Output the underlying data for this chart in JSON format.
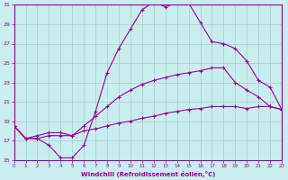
{
  "xlabel": "Windchill (Refroidissement éolien,°C)",
  "background_color": "#c8eef0",
  "grid_color": "#aacccc",
  "line_color": "#990099",
  "xmin": 0,
  "xmax": 23,
  "ymin": 15,
  "ymax": 31,
  "yticks": [
    15,
    17,
    19,
    21,
    23,
    25,
    27,
    29,
    31
  ],
  "xticks": [
    0,
    1,
    2,
    3,
    4,
    5,
    6,
    7,
    8,
    9,
    10,
    11,
    12,
    13,
    14,
    15,
    16,
    17,
    18,
    19,
    20,
    21,
    22,
    23
  ],
  "curve1_x": [
    0,
    1,
    2,
    3,
    4,
    5,
    6,
    7,
    8,
    9,
    10,
    11,
    12,
    13,
    14,
    15,
    16,
    17,
    18,
    19,
    20,
    21,
    22,
    23
  ],
  "curve1_y": [
    18.5,
    17.2,
    17.2,
    16.5,
    15.2,
    15.2,
    16.5,
    20.0,
    24.0,
    26.5,
    28.5,
    30.5,
    31.3,
    30.8,
    31.2,
    31.2,
    29.2,
    27.2,
    27.0,
    26.5,
    25.2,
    23.2,
    22.5,
    20.2
  ],
  "curve2_x": [
    0,
    1,
    2,
    3,
    4,
    5,
    6,
    7,
    8,
    9,
    10,
    11,
    12,
    13,
    14,
    15,
    16,
    17,
    18,
    19,
    20,
    21,
    22,
    23
  ],
  "curve2_y": [
    18.5,
    17.2,
    17.2,
    17.5,
    17.5,
    17.5,
    18.5,
    19.5,
    20.5,
    21.5,
    22.2,
    22.8,
    23.2,
    23.5,
    23.8,
    24.0,
    24.2,
    24.5,
    24.5,
    23.0,
    22.2,
    21.5,
    20.5,
    20.2
  ],
  "curve3_x": [
    0,
    1,
    2,
    3,
    4,
    5,
    6,
    7,
    8,
    9,
    10,
    11,
    12,
    13,
    14,
    15,
    16,
    17,
    18,
    19,
    20,
    21,
    22,
    23
  ],
  "curve3_y": [
    18.5,
    17.2,
    17.5,
    17.8,
    17.8,
    17.5,
    18.0,
    18.2,
    18.5,
    18.8,
    19.0,
    19.3,
    19.5,
    19.8,
    20.0,
    20.2,
    20.3,
    20.5,
    20.5,
    20.5,
    20.3,
    20.5,
    20.5,
    20.2
  ]
}
